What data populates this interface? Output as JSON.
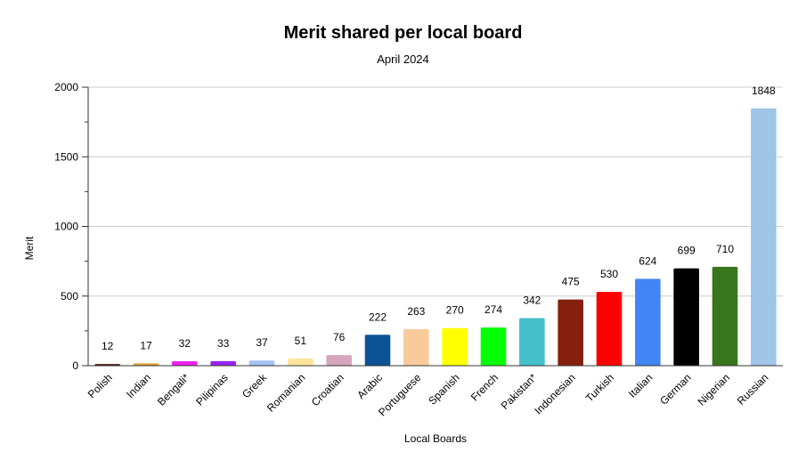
{
  "chart_data": {
    "type": "bar",
    "title": "Merit shared per local board",
    "subtitle": "April 2024",
    "xlabel": "Local Boards",
    "ylabel": "Merit",
    "ylim": [
      0,
      2000
    ],
    "yticks": [
      0,
      500,
      1000,
      1500,
      2000
    ],
    "grid": true,
    "legend": "none",
    "categories": [
      "Polish",
      "Indian",
      "Bengali*",
      "Pilipinas",
      "Greek",
      "Romanian",
      "Croatian",
      "Arabic",
      "Portuguese",
      "Spanish",
      "French",
      "Pakistan*",
      "Indonesian",
      "Turkish",
      "Italian",
      "German",
      "Nigerian",
      "Russian"
    ],
    "values": [
      12,
      17,
      32,
      33,
      37,
      51,
      76,
      222,
      263,
      270,
      274,
      342,
      475,
      530,
      624,
      699,
      710,
      1848
    ],
    "colors": [
      "#4a1a0a",
      "#e0a030",
      "#ee22ee",
      "#9922ee",
      "#a4c2f4",
      "#ffe599",
      "#d5a6bd",
      "#0b5394",
      "#f9cb9c",
      "#ffff00",
      "#00ff00",
      "#45bfc9",
      "#85200c",
      "#ff0000",
      "#4285f4",
      "#000000",
      "#38761d",
      "#9fc5e8"
    ]
  }
}
